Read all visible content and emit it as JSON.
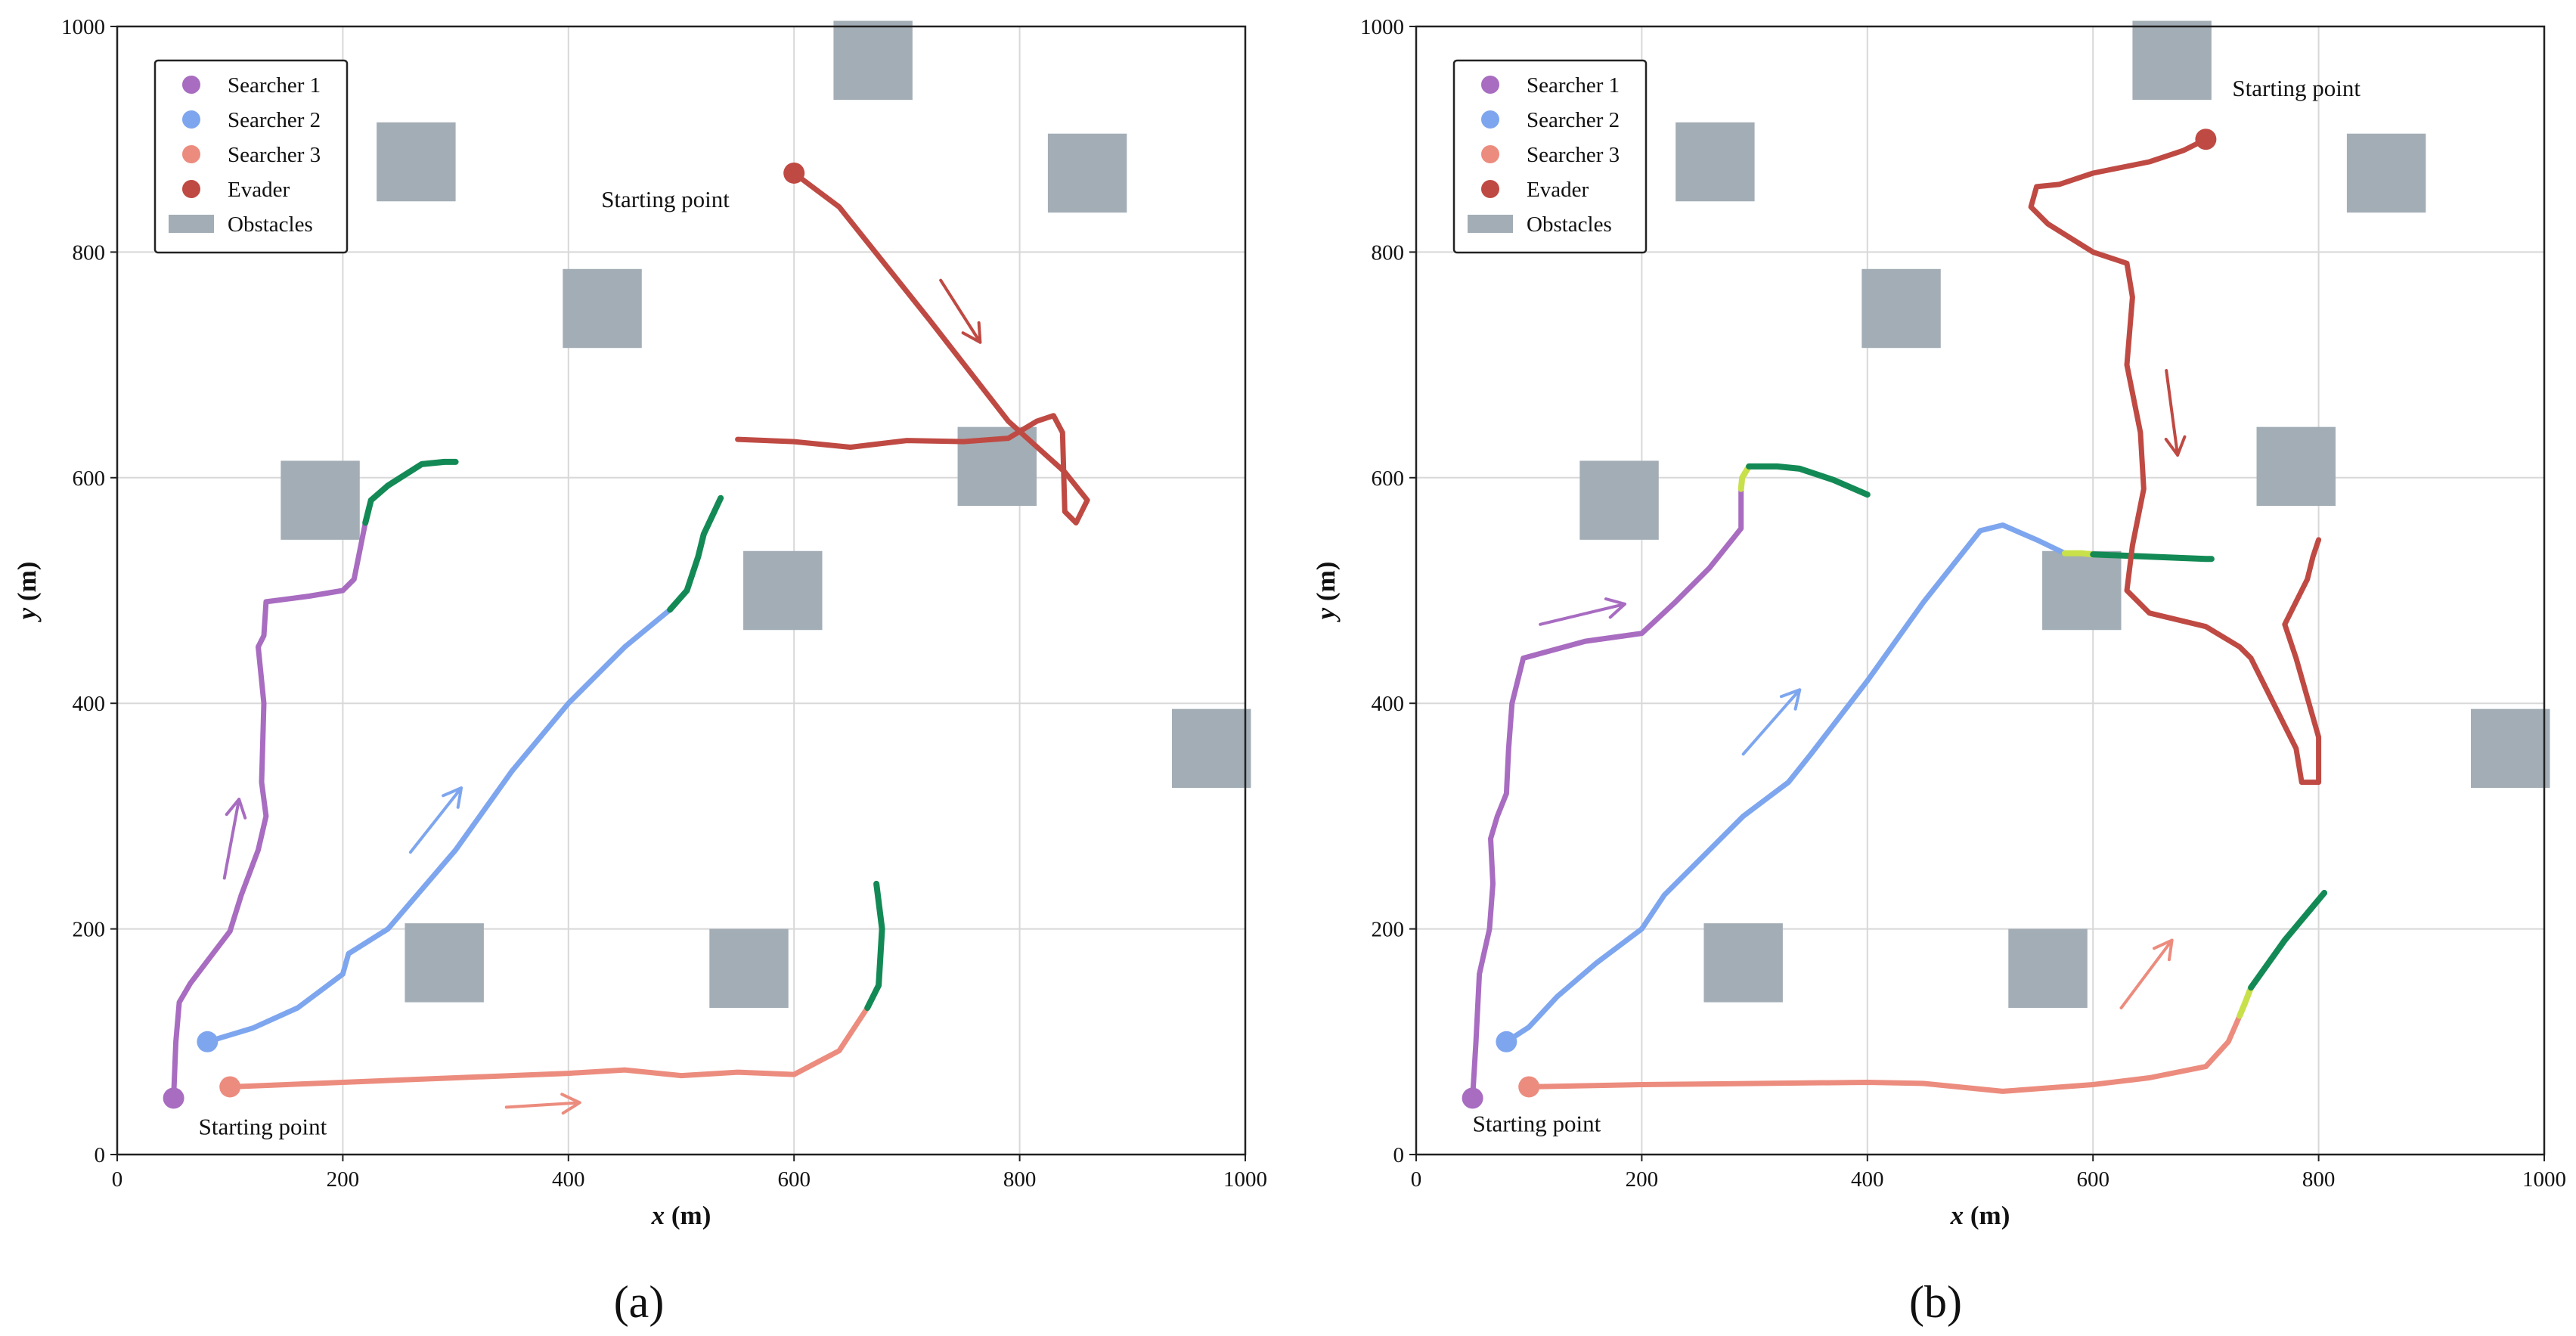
{
  "chart_data": [
    {
      "type": "line",
      "panel_label": "(a)",
      "xlabel": "x (m)",
      "ylabel": "y (m)",
      "xlim": [
        0,
        1000
      ],
      "ylim": [
        0,
        1000
      ],
      "xticks": [
        "0",
        "200",
        "400",
        "600",
        "800",
        "1000"
      ],
      "yticks": [
        "0",
        "200",
        "400",
        "600",
        "800",
        "1000"
      ],
      "grid": true,
      "legend_position": "top-left",
      "legend": [
        "Searcher 1",
        "Searcher 2",
        "Searcher 3",
        "Evader",
        "Obstacles"
      ],
      "obstacles": [
        {
          "x": 230,
          "y": 845,
          "w": 70,
          "h": 70
        },
        {
          "x": 635,
          "y": 935,
          "w": 70,
          "h": 70
        },
        {
          "x": 825,
          "y": 835,
          "w": 70,
          "h": 70
        },
        {
          "x": 395,
          "y": 715,
          "w": 70,
          "h": 70
        },
        {
          "x": 145,
          "y": 545,
          "w": 70,
          "h": 70
        },
        {
          "x": 745,
          "y": 575,
          "w": 70,
          "h": 70
        },
        {
          "x": 555,
          "y": 465,
          "w": 70,
          "h": 70
        },
        {
          "x": 935,
          "y": 325,
          "w": 70,
          "h": 70
        },
        {
          "x": 255,
          "y": 135,
          "w": 70,
          "h": 70
        },
        {
          "x": 525,
          "y": 130,
          "w": 70,
          "h": 70
        }
      ],
      "series": [
        {
          "name": "Searcher 1",
          "color": "#a86cc1",
          "start": [
            50,
            50
          ],
          "points": [
            [
              50,
              50
            ],
            [
              52,
              100
            ],
            [
              55,
              135
            ],
            [
              65,
              152
            ],
            [
              100,
              198
            ],
            [
              110,
              230
            ],
            [
              125,
              270
            ],
            [
              132,
              300
            ],
            [
              128,
              330
            ],
            [
              130,
              400
            ],
            [
              125,
              450
            ],
            [
              130,
              460
            ],
            [
              132,
              490
            ],
            [
              170,
              495
            ],
            [
              200,
              500
            ],
            [
              210,
              510
            ],
            [
              220,
              560
            ]
          ],
          "capture_points": [
            [
              220,
              560
            ],
            [
              225,
              580
            ],
            [
              240,
              593
            ],
            [
              270,
              612
            ],
            [
              290,
              614
            ],
            [
              300,
              614
            ]
          ]
        },
        {
          "name": "Searcher 2",
          "color": "#7ea6ef",
          "start": [
            80,
            100
          ],
          "points": [
            [
              80,
              100
            ],
            [
              120,
              112
            ],
            [
              160,
              130
            ],
            [
              200,
              160
            ],
            [
              205,
              178
            ],
            [
              240,
              200
            ],
            [
              300,
              270
            ],
            [
              350,
              340
            ],
            [
              400,
              400
            ],
            [
              450,
              450
            ],
            [
              490,
              483
            ]
          ],
          "capture_points": [
            [
              490,
              483
            ],
            [
              505,
              500
            ],
            [
              515,
              530
            ],
            [
              520,
              550
            ],
            [
              535,
              582
            ]
          ]
        },
        {
          "name": "Searcher 3",
          "color": "#ec8c7e",
          "start": [
            100,
            60
          ],
          "points": [
            [
              100,
              60
            ],
            [
              200,
              64
            ],
            [
              300,
              68
            ],
            [
              400,
              72
            ],
            [
              450,
              75
            ],
            [
              500,
              70
            ],
            [
              550,
              73
            ],
            [
              600,
              71
            ],
            [
              640,
              92
            ],
            [
              665,
              130
            ]
          ],
          "capture_points": [
            [
              665,
              130
            ],
            [
              675,
              150
            ],
            [
              678,
              200
            ],
            [
              673,
              240
            ]
          ]
        },
        {
          "name": "Evader",
          "color": "#bf4a43",
          "start": [
            600,
            870
          ],
          "points": [
            [
              600,
              870
            ],
            [
              640,
              840
            ],
            [
              720,
              740
            ],
            [
              790,
              650
            ],
            [
              840,
              605
            ],
            [
              860,
              580
            ],
            [
              850,
              560
            ],
            [
              840,
              570
            ],
            [
              838,
              640
            ],
            [
              830,
              655
            ],
            [
              815,
              650
            ],
            [
              790,
              635
            ],
            [
              750,
              632
            ],
            [
              700,
              633
            ],
            [
              650,
              627
            ],
            [
              600,
              632
            ],
            [
              550,
              634
            ]
          ],
          "capture_points": []
        }
      ],
      "arrows": [
        {
          "series": "Searcher 1",
          "from": [
            95,
            245
          ],
          "to": [
            108,
            315
          ]
        },
        {
          "series": "Searcher 2",
          "from": [
            260,
            268
          ],
          "to": [
            305,
            325
          ]
        },
        {
          "series": "Searcher 3",
          "from": [
            345,
            42
          ],
          "to": [
            410,
            46
          ]
        },
        {
          "series": "Evader",
          "from": [
            730,
            775
          ],
          "to": [
            765,
            720
          ]
        }
      ],
      "annotations": [
        {
          "text": "Starting point",
          "near": "Searcher 1 start"
        },
        {
          "text": "Starting point",
          "near": "Evader start"
        }
      ]
    },
    {
      "type": "line",
      "panel_label": "(b)",
      "xlabel": "x (m)",
      "ylabel": "y (m)",
      "xlim": [
        0,
        1000
      ],
      "ylim": [
        0,
        1000
      ],
      "xticks": [
        "0",
        "200",
        "400",
        "600",
        "800",
        "1000"
      ],
      "yticks": [
        "0",
        "200",
        "400",
        "600",
        "800",
        "1000"
      ],
      "grid": true,
      "legend_position": "top-left",
      "legend": [
        "Searcher 1",
        "Searcher 2",
        "Searcher 3",
        "Evader",
        "Obstacles"
      ],
      "obstacles": [
        {
          "x": 230,
          "y": 845,
          "w": 70,
          "h": 70
        },
        {
          "x": 635,
          "y": 935,
          "w": 70,
          "h": 70
        },
        {
          "x": 825,
          "y": 835,
          "w": 70,
          "h": 70
        },
        {
          "x": 395,
          "y": 715,
          "w": 70,
          "h": 70
        },
        {
          "x": 145,
          "y": 545,
          "w": 70,
          "h": 70
        },
        {
          "x": 745,
          "y": 575,
          "w": 70,
          "h": 70
        },
        {
          "x": 555,
          "y": 465,
          "w": 70,
          "h": 70
        },
        {
          "x": 935,
          "y": 325,
          "w": 70,
          "h": 70
        },
        {
          "x": 255,
          "y": 135,
          "w": 70,
          "h": 70
        },
        {
          "x": 525,
          "y": 130,
          "w": 70,
          "h": 70
        }
      ],
      "series": [
        {
          "name": "Searcher 1",
          "color": "#a86cc1",
          "start": [
            50,
            50
          ],
          "points": [
            [
              50,
              50
            ],
            [
              53,
              100
            ],
            [
              56,
              160
            ],
            [
              65,
              200
            ],
            [
              68,
              240
            ],
            [
              66,
              280
            ],
            [
              72,
              300
            ],
            [
              80,
              320
            ],
            [
              82,
              360
            ],
            [
              85,
              400
            ],
            [
              95,
              440
            ],
            [
              150,
              455
            ],
            [
              200,
              462
            ],
            [
              230,
              490
            ],
            [
              260,
              520
            ],
            [
              280,
              545
            ],
            [
              288,
              555
            ],
            [
              288,
              590
            ]
          ],
          "transition_points": [
            [
              288,
              590
            ],
            [
              289,
              600
            ],
            [
              295,
              610
            ]
          ],
          "capture_points": [
            [
              295,
              610
            ],
            [
              320,
              610
            ],
            [
              340,
              608
            ],
            [
              370,
              598
            ],
            [
              400,
              585
            ]
          ]
        },
        {
          "name": "Searcher 2",
          "color": "#7ea6ef",
          "start": [
            80,
            100
          ],
          "points": [
            [
              80,
              100
            ],
            [
              100,
              113
            ],
            [
              125,
              140
            ],
            [
              160,
              170
            ],
            [
              200,
              200
            ],
            [
              220,
              230
            ],
            [
              260,
              270
            ],
            [
              290,
              300
            ],
            [
              310,
              315
            ],
            [
              330,
              330
            ],
            [
              350,
              355
            ],
            [
              400,
              420
            ],
            [
              450,
              490
            ],
            [
              500,
              553
            ],
            [
              520,
              558
            ],
            [
              550,
              545
            ],
            [
              575,
              533
            ]
          ],
          "transition_points": [
            [
              575,
              533
            ],
            [
              590,
              533
            ],
            [
              600,
              532
            ]
          ],
          "capture_points": [
            [
              600,
              532
            ],
            [
              650,
              530
            ],
            [
              700,
              528
            ],
            [
              705,
              528
            ]
          ]
        },
        {
          "name": "Searcher 3",
          "color": "#ec8c7e",
          "start": [
            100,
            60
          ],
          "points": [
            [
              100,
              60
            ],
            [
              200,
              62
            ],
            [
              300,
              63
            ],
            [
              400,
              64
            ],
            [
              450,
              63
            ],
            [
              520,
              56
            ],
            [
              600,
              62
            ],
            [
              650,
              68
            ],
            [
              700,
              78
            ],
            [
              720,
              100
            ],
            [
              730,
              123
            ]
          ],
          "transition_points": [
            [
              730,
              123
            ],
            [
              735,
              135
            ],
            [
              740,
              148
            ]
          ],
          "capture_points": [
            [
              740,
              148
            ],
            [
              770,
              190
            ],
            [
              805,
              232
            ]
          ]
        },
        {
          "name": "Evader",
          "color": "#bf4a43",
          "start": [
            700,
            900
          ],
          "points": [
            [
              700,
              900
            ],
            [
              680,
              890
            ],
            [
              650,
              880
            ],
            [
              600,
              870
            ],
            [
              570,
              860
            ],
            [
              550,
              858
            ],
            [
              545,
              840
            ],
            [
              560,
              825
            ],
            [
              600,
              800
            ],
            [
              630,
              790
            ],
            [
              635,
              760
            ],
            [
              630,
              700
            ],
            [
              642,
              640
            ],
            [
              645,
              590
            ],
            [
              635,
              540
            ],
            [
              630,
              500
            ],
            [
              650,
              480
            ],
            [
              700,
              468
            ],
            [
              730,
              450
            ],
            [
              740,
              440
            ],
            [
              770,
              380
            ],
            [
              780,
              360
            ],
            [
              785,
              330
            ],
            [
              800,
              330
            ],
            [
              800,
              370
            ],
            [
              780,
              440
            ],
            [
              770,
              470
            ],
            [
              790,
              510
            ],
            [
              795,
              530
            ],
            [
              800,
              545
            ]
          ],
          "capture_points": []
        }
      ],
      "arrows": [
        {
          "series": "Searcher 1",
          "from": [
            110,
            470
          ],
          "to": [
            185,
            488
          ]
        },
        {
          "series": "Searcher 2",
          "from": [
            290,
            355
          ],
          "to": [
            340,
            412
          ]
        },
        {
          "series": "Searcher 3",
          "from": [
            625,
            130
          ],
          "to": [
            670,
            190
          ]
        },
        {
          "series": "Evader",
          "from": [
            665,
            695
          ],
          "to": [
            675,
            620
          ]
        }
      ],
      "annotations": [
        {
          "text": "Starting point",
          "near": "Searcher 1 start"
        },
        {
          "text": "Starting point",
          "near": "Evader start"
        }
      ]
    }
  ],
  "colors": {
    "capture": "#138a55",
    "transition": "#c8e04a",
    "obstacle": "#a3adb5",
    "grid": "#d8d8d8"
  }
}
